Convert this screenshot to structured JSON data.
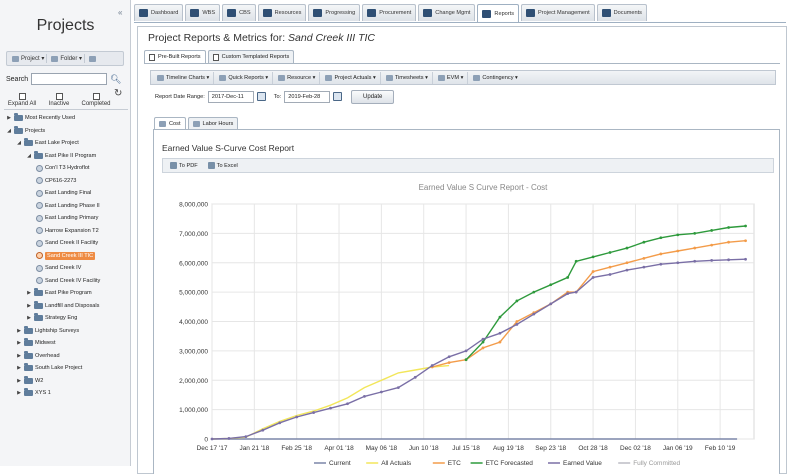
{
  "sidebar": {
    "collapse_icon": "double-chevron-left-icon",
    "title": "Projects",
    "toolbar": {
      "project_label": "Project ▾",
      "folder_label": "Folder ▾"
    },
    "search_label": "Search",
    "search_value": "",
    "checks": [
      "Expand All",
      "Inactive",
      "Completed"
    ],
    "tree": [
      {
        "label": "Most Recently Used",
        "level": 0,
        "kind": "folder",
        "state": "collapsed"
      },
      {
        "label": "Projects",
        "level": 0,
        "kind": "folder",
        "state": "expanded"
      },
      {
        "label": "East Lake Project",
        "level": 1,
        "kind": "folder",
        "state": "expanded"
      },
      {
        "label": "East Pike II Program",
        "level": 2,
        "kind": "folder",
        "state": "expanded"
      },
      {
        "label": "Con'l T3 Hydroflot",
        "level": 3,
        "kind": "project"
      },
      {
        "label": "CP616-2273",
        "level": 3,
        "kind": "project"
      },
      {
        "label": "East Landing Final",
        "level": 3,
        "kind": "project"
      },
      {
        "label": "East Landing Phase II",
        "level": 3,
        "kind": "project"
      },
      {
        "label": "East Landing Primary",
        "level": 3,
        "kind": "project"
      },
      {
        "label": "Harrow Expansion T2",
        "level": 3,
        "kind": "project"
      },
      {
        "label": "Sand Creek II Facility",
        "level": 3,
        "kind": "project"
      },
      {
        "label": "Sand Creek III TIC",
        "level": 3,
        "kind": "project",
        "selected": true
      },
      {
        "label": "Sand Creek IV",
        "level": 3,
        "kind": "project"
      },
      {
        "label": "Sand Creek IV Facility",
        "level": 3,
        "kind": "project"
      },
      {
        "label": "East Pike Program",
        "level": 2,
        "kind": "folder",
        "state": "collapsed"
      },
      {
        "label": "Landfill and Disposals",
        "level": 2,
        "kind": "folder",
        "state": "collapsed"
      },
      {
        "label": "Strategy Eng",
        "level": 2,
        "kind": "folder",
        "state": "collapsed"
      },
      {
        "label": "Lightship Surveys",
        "level": 1,
        "kind": "folder",
        "state": "collapsed"
      },
      {
        "label": "Midwest",
        "level": 1,
        "kind": "folder",
        "state": "collapsed"
      },
      {
        "label": "Overhead",
        "level": 1,
        "kind": "folder",
        "state": "collapsed"
      },
      {
        "label": "South Lake Project",
        "level": 1,
        "kind": "folder",
        "state": "collapsed"
      },
      {
        "label": "W2",
        "level": 1,
        "kind": "folder",
        "state": "collapsed"
      },
      {
        "label": "XYS 1",
        "level": 1,
        "kind": "folder",
        "state": "collapsed"
      }
    ]
  },
  "nav": {
    "tabs": [
      "Dashboard",
      "WBS",
      "CBS",
      "Resources",
      "Progressing",
      "Procurement",
      "Change Mgmt",
      "Reports",
      "Project Management",
      "Documents"
    ],
    "active": "Reports"
  },
  "page": {
    "title_prefix": "Project Reports & Metrics for:",
    "project_name": "Sand Creek III TIC"
  },
  "subtabs": {
    "items": [
      "Pre-Built Reports",
      "Custom Templated Reports"
    ],
    "active": "Pre-Built Reports"
  },
  "toolbar": {
    "items": [
      "Timeline Charts ▾",
      "Quick Reports ▾",
      "Resource ▾",
      "Project Actuals ▾",
      "Timesheets ▾",
      "EVM ▾",
      "Contingency ▾"
    ]
  },
  "date_range": {
    "label": "Report Date Range:",
    "from": "2017-Dec-11",
    "to_label": "To:",
    "to": "2019-Feb-28",
    "update_label": "Update"
  },
  "report_tabs": {
    "items": [
      "Cost",
      "Labor Hours"
    ],
    "active": "Cost"
  },
  "report": {
    "title": "Earned Value S-Curve Cost Report",
    "export": [
      "To PDF",
      "To Excel"
    ]
  },
  "chart_data": {
    "type": "line",
    "title": "Earned Value S Curve Report - Cost",
    "xlabel": "",
    "ylabel": "",
    "ylim": [
      0,
      8000000
    ],
    "yticks": [
      "0",
      "1,000,000",
      "2,000,000",
      "3,000,000",
      "4,000,000",
      "5,000,000",
      "6,000,000",
      "7,000,000",
      "8,000,000"
    ],
    "xlim": [
      "2017-12-17",
      "2019-03-10"
    ],
    "xticks": [
      "Dec 17 '17",
      "Jan 21 '18",
      "Feb 25 '18",
      "Apr 01 '18",
      "May 06 '18",
      "Jun 10 '18",
      "Jul 15 '18",
      "Aug 19 '18",
      "Sep 23 '18",
      "Oct 28 '18",
      "Dec 02 '18",
      "Jan 06 '19",
      "Feb 10 '19"
    ],
    "grid": true,
    "legend_position": "bottom",
    "series": [
      {
        "name": "Current",
        "color": "#7b86a8",
        "dots": false,
        "x": [
          "2017-12-17",
          "2019-02-24"
        ],
        "y": [
          0,
          0
        ]
      },
      {
        "name": "All Actuals",
        "color": "#f2e65a",
        "dots": false,
        "x": [
          "2017-12-17",
          "2017-12-31",
          "2018-01-14",
          "2018-01-28",
          "2018-02-11",
          "2018-02-25",
          "2018-03-11",
          "2018-03-25",
          "2018-04-08",
          "2018-04-22",
          "2018-05-06",
          "2018-05-20",
          "2018-06-03",
          "2018-06-17",
          "2018-07-01"
        ],
        "y": [
          0,
          20000,
          60000,
          350000,
          600000,
          800000,
          950000,
          1150000,
          1400000,
          1750000,
          2000000,
          2250000,
          2350000,
          2450000,
          2500000
        ]
      },
      {
        "name": "ETC",
        "color": "#f39c4a",
        "dots": true,
        "x": [
          "2018-06-17",
          "2018-07-01",
          "2018-07-15",
          "2018-07-29",
          "2018-08-12",
          "2018-08-26",
          "2018-09-09",
          "2018-09-23",
          "2018-10-07",
          "2018-10-14",
          "2018-10-28",
          "2018-11-11",
          "2018-11-25",
          "2018-12-09",
          "2018-12-23",
          "2019-01-06",
          "2019-01-20",
          "2019-02-03",
          "2019-02-17",
          "2019-03-03"
        ],
        "y": [
          2450000,
          2600000,
          2700000,
          3100000,
          3300000,
          4000000,
          4300000,
          4600000,
          5000000,
          5000000,
          5700000,
          5850000,
          6000000,
          6150000,
          6300000,
          6400000,
          6500000,
          6600000,
          6700000,
          6750000
        ]
      },
      {
        "name": "ETC Forecasted",
        "color": "#2e9a3c",
        "dots": true,
        "x": [
          "2018-07-15",
          "2018-07-29",
          "2018-08-12",
          "2018-08-26",
          "2018-09-09",
          "2018-09-23",
          "2018-10-07",
          "2018-10-14",
          "2018-10-28",
          "2018-11-11",
          "2018-11-25",
          "2018-12-09",
          "2018-12-23",
          "2019-01-06",
          "2019-01-20",
          "2019-02-03",
          "2019-02-17",
          "2019-03-03"
        ],
        "y": [
          2700000,
          3300000,
          4150000,
          4700000,
          5000000,
          5250000,
          5500000,
          6050000,
          6200000,
          6350000,
          6500000,
          6700000,
          6850000,
          6950000,
          7000000,
          7100000,
          7200000,
          7250000
        ]
      },
      {
        "name": "Earned Value",
        "color": "#7a6fa6",
        "dots": true,
        "x": [
          "2017-12-17",
          "2017-12-31",
          "2018-01-14",
          "2018-01-28",
          "2018-02-11",
          "2018-02-25",
          "2018-03-11",
          "2018-03-25",
          "2018-04-08",
          "2018-04-22",
          "2018-05-06",
          "2018-05-20",
          "2018-06-03",
          "2018-06-17",
          "2018-07-01",
          "2018-07-15",
          "2018-07-29",
          "2018-08-12",
          "2018-08-26",
          "2018-09-09",
          "2018-09-23",
          "2018-10-07",
          "2018-10-14",
          "2018-10-28",
          "2018-11-11",
          "2018-11-25",
          "2018-12-09",
          "2018-12-23",
          "2019-01-06",
          "2019-01-20",
          "2019-02-03",
          "2019-02-17",
          "2019-03-03"
        ],
        "y": [
          0,
          20000,
          80000,
          300000,
          550000,
          750000,
          900000,
          1050000,
          1200000,
          1450000,
          1600000,
          1750000,
          2100000,
          2500000,
          2800000,
          3000000,
          3400000,
          3600000,
          3900000,
          4250000,
          4600000,
          4950000,
          5000000,
          5500000,
          5600000,
          5750000,
          5850000,
          5950000,
          6000000,
          6050000,
          6080000,
          6100000,
          6120000
        ]
      },
      {
        "name": "Fully Committed",
        "color": "#bcbcc4",
        "dots": false,
        "x": [],
        "y": []
      }
    ]
  }
}
